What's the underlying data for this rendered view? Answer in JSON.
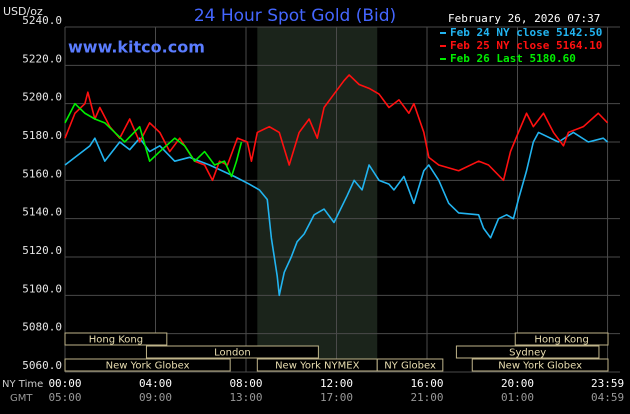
{
  "chart_data": {
    "type": "line",
    "title": "24 Hour Spot Gold (Bid)",
    "unit_label": "USD/oz",
    "watermark": "www.kitco.com",
    "timestamp": "February 26, 2026 07:37",
    "x_axis_label": "NY Time",
    "x2_axis_label": "GMT",
    "xlim": [
      0,
      24
    ],
    "ylim": [
      5060,
      5240
    ],
    "xticks": [
      {
        "value": 0,
        "label": "00:00"
      },
      {
        "value": 4,
        "label": "04:00"
      },
      {
        "value": 8,
        "label": "08:00"
      },
      {
        "value": 12,
        "label": "12:00"
      },
      {
        "value": 16,
        "label": "16:00"
      },
      {
        "value": 20,
        "label": "20:00"
      },
      {
        "value": 23.98,
        "label": "23:59"
      }
    ],
    "x2tick_labels": [
      "05:00",
      "09:00",
      "13:00",
      "17:00",
      "21:00",
      "01:00",
      "04:59"
    ],
    "yticks": [
      {
        "value": 5060,
        "label": "5060.0"
      },
      {
        "value": 5080,
        "label": "5080.0"
      },
      {
        "value": 5100,
        "label": "5100.0"
      },
      {
        "value": 5120,
        "label": "5120.0"
      },
      {
        "value": 5140,
        "label": "5140.0"
      },
      {
        "value": 5160,
        "label": "5160.0"
      },
      {
        "value": 5180,
        "label": "5180.0"
      },
      {
        "value": 5200,
        "label": "5200.0"
      },
      {
        "value": 5220,
        "label": "5220.0"
      },
      {
        "value": 5240,
        "label": "5240.0"
      }
    ],
    "grid": true,
    "sessions": [
      [
        {
          "label": "Hong Kong",
          "start": 0,
          "end": 4.5
        },
        {
          "label": "Hong Kong",
          "start": 19.9,
          "end": 24
        }
      ],
      [
        {
          "label": "London",
          "start": 3.6,
          "end": 11.2
        },
        {
          "label": "Sydney",
          "start": 17.3,
          "end": 23.6
        }
      ],
      [
        {
          "label": "New York Globex",
          "start": 0,
          "end": 7.3
        },
        {
          "label": "New York NYMEX",
          "start": 8.5,
          "end": 13.8,
          "highlight": true
        },
        {
          "label": "NY Globex",
          "start": 13.8,
          "end": 16.7
        },
        {
          "label": "New York Globex",
          "start": 18,
          "end": 24
        }
      ]
    ],
    "series": [
      {
        "name": "Feb 24 NY close 5142.50",
        "color": "#22b4f0",
        "x": [
          0,
          1.1,
          1.32,
          1.76,
          2.42,
          2.86,
          3.3,
          3.74,
          4.19,
          4.85,
          5.51,
          6.39,
          7.49,
          8.15,
          8.59,
          8.94,
          9.12,
          9.38,
          9.47,
          9.69,
          10.0,
          10.26,
          10.57,
          11.01,
          11.45,
          11.89,
          12.47,
          12.78,
          13.13,
          13.44,
          13.88,
          14.32,
          14.54,
          14.98,
          15.42,
          15.86,
          16.08,
          16.52,
          16.96,
          17.4,
          18.28,
          18.5,
          18.81,
          19.16,
          19.52,
          19.82,
          20.04,
          20.4,
          20.7,
          20.93,
          21.81,
          22.47,
          23.13,
          23.79,
          23.98
        ],
        "values": [
          5168,
          5178,
          5182,
          5170,
          5180,
          5176,
          5182,
          5175,
          5178,
          5170,
          5172,
          5168,
          5162,
          5158,
          5155,
          5150,
          5130,
          5110,
          5100,
          5112,
          5120,
          5128,
          5132,
          5142,
          5145,
          5138,
          5152,
          5160,
          5155,
          5168,
          5160,
          5158,
          5155,
          5162,
          5148,
          5165,
          5168,
          5160,
          5148,
          5143,
          5142,
          5135,
          5130,
          5140,
          5142,
          5140,
          5150,
          5165,
          5180,
          5185,
          5180,
          5185,
          5180,
          5182,
          5180
        ]
      },
      {
        "name": "Feb 25 NY close 5164.10",
        "color": "#ff1010",
        "x": [
          0,
          0.44,
          0.88,
          1.01,
          1.32,
          1.54,
          1.98,
          2.42,
          2.86,
          3.3,
          3.74,
          4.19,
          4.63,
          5.07,
          5.73,
          6.17,
          6.52,
          6.83,
          7.18,
          7.62,
          8.06,
          8.24,
          8.5,
          9.03,
          9.47,
          9.91,
          10.35,
          10.79,
          11.15,
          11.45,
          11.89,
          12.33,
          12.56,
          13.0,
          13.44,
          13.88,
          14.32,
          14.76,
          15.2,
          15.42,
          15.86,
          16.08,
          16.52,
          17.4,
          18.28,
          18.72,
          19.38,
          19.69,
          20.04,
          20.4,
          20.7,
          21.15,
          21.59,
          22.03,
          22.25,
          22.91,
          23.57,
          23.98
        ],
        "values": [
          5182,
          5195,
          5200,
          5206,
          5192,
          5198,
          5188,
          5182,
          5192,
          5180,
          5190,
          5185,
          5175,
          5182,
          5170,
          5168,
          5160,
          5170,
          5168,
          5182,
          5180,
          5170,
          5185,
          5188,
          5185,
          5168,
          5185,
          5192,
          5182,
          5198,
          5205,
          5212,
          5215,
          5210,
          5208,
          5205,
          5198,
          5202,
          5195,
          5200,
          5185,
          5172,
          5168,
          5165,
          5170,
          5168,
          5160,
          5175,
          5185,
          5195,
          5188,
          5195,
          5185,
          5178,
          5185,
          5188,
          5195,
          5190
        ]
      },
      {
        "name": "Feb 26 Last 5180.60",
        "color": "#00ee00",
        "x": [
          0,
          0.22,
          0.44,
          0.88,
          1.32,
          1.76,
          2.2,
          2.64,
          3.3,
          3.74,
          4.19,
          4.85,
          5.29,
          5.73,
          6.17,
          6.61,
          7.05,
          7.36,
          7.58,
          7.8
        ],
        "values": [
          5190,
          5195,
          5200,
          5195,
          5192,
          5190,
          5185,
          5180,
          5188,
          5170,
          5175,
          5182,
          5178,
          5170,
          5175,
          5168,
          5170,
          5162,
          5170,
          5180
        ]
      }
    ]
  }
}
